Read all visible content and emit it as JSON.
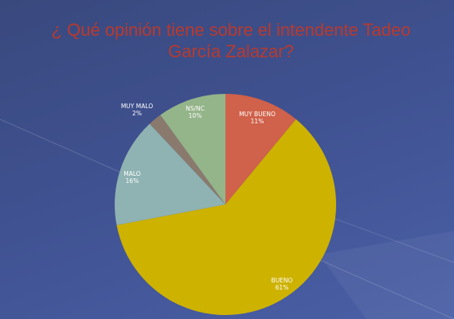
{
  "slide": {
    "title": "¿ Qué opinión tiene sobre el intendente Tadeo García Zalazar?"
  },
  "colors": {
    "title": "#b83a2e",
    "background": "#3f5190"
  },
  "chart_data": {
    "type": "pie",
    "title": "¿ Qué opinión tiene sobre el intendente Tadeo García Zalazar?",
    "start_angle_deg": 0,
    "direction": "clockwise",
    "slices": [
      {
        "label": "MUY BUENO",
        "value": 11,
        "pct_label": "11%",
        "color": "#d0614a"
      },
      {
        "label": "BUENO",
        "value": 61,
        "pct_label": "61%",
        "color": "#cdb200"
      },
      {
        "label": "MALO",
        "value": 16,
        "pct_label": "16%",
        "color": "#8fb2b2"
      },
      {
        "label": "MUY MALO",
        "value": 2,
        "pct_label": "2%",
        "color": "#8a7a6e"
      },
      {
        "label": "NS/NC",
        "value": 10,
        "pct_label": "10%",
        "color": "#94b48a"
      }
    ]
  }
}
